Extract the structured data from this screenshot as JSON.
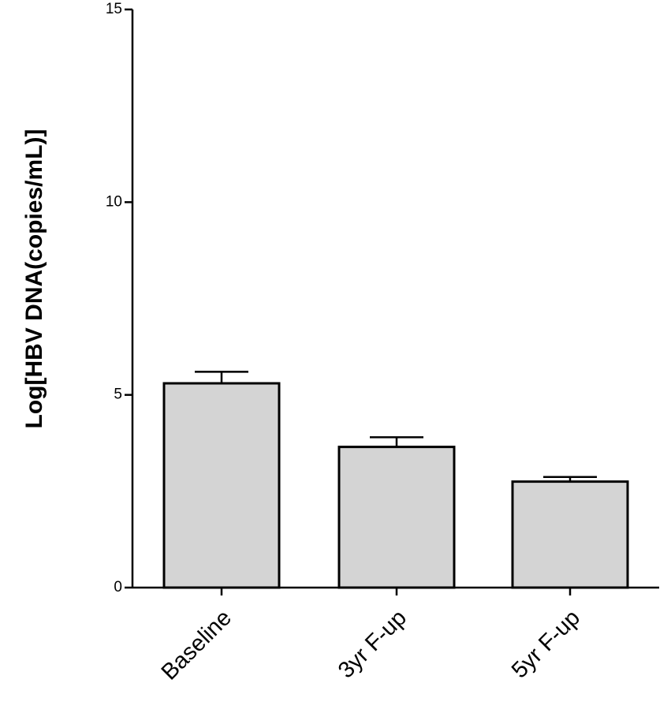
{
  "chart_data": {
    "type": "bar",
    "categories": [
      "Baseline",
      "3yr F-up",
      "5yr F-up"
    ],
    "values": [
      5.3,
      3.65,
      2.75
    ],
    "error_upper": [
      0.3,
      0.25,
      0.12
    ],
    "ylabel": "Log[HBV DNA(copies/mL)]",
    "xlabel": "",
    "title": "",
    "ylim": [
      0,
      15
    ],
    "yticks": [
      0,
      5,
      10,
      15
    ],
    "bar_color": "#d4d4d4",
    "edge_color": "#000000",
    "grid": false,
    "legend": "none"
  }
}
